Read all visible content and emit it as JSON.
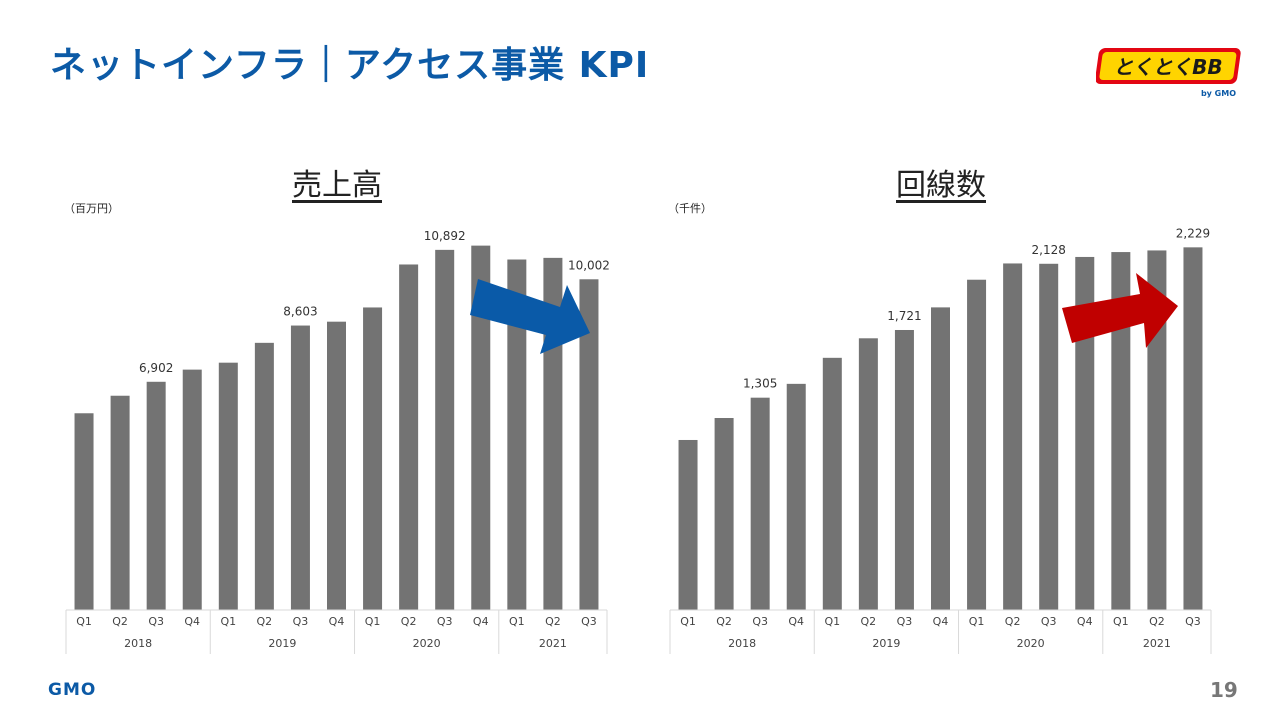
{
  "slide": {
    "title": "ネットインフラ｜アクセス事業 KPI",
    "page_number": "19",
    "footer_logo": "GMO",
    "brand_logo_text": "とくとくBB",
    "brand_logo_sub": "by GMO"
  },
  "colors": {
    "bar": "#737373",
    "title": "#0c5aa6",
    "arrow_down": "#0a5aa8",
    "arrow_up": "#c00000"
  },
  "chart_data": [
    {
      "type": "bar",
      "title": "売上高",
      "unit": "（百万円）",
      "categories": [
        "Q1",
        "Q2",
        "Q3",
        "Q4",
        "Q1",
        "Q2",
        "Q3",
        "Q4",
        "Q1",
        "Q2",
        "Q3",
        "Q4",
        "Q1",
        "Q2",
        "Q3"
      ],
      "groups": [
        {
          "label": "2018",
          "count": 4
        },
        {
          "label": "2019",
          "count": 4
        },
        {
          "label": "2020",
          "count": 4
        },
        {
          "label": "2021",
          "count": 3
        }
      ],
      "values": [
        5950,
        6480,
        6902,
        7270,
        7480,
        8080,
        8603,
        8720,
        9150,
        10450,
        10892,
        11020,
        10600,
        10650,
        10002
      ],
      "data_labels": [
        {
          "index": 2,
          "text": "6,902"
        },
        {
          "index": 6,
          "text": "8,603"
        },
        {
          "index": 10,
          "text": "10,892"
        },
        {
          "index": 14,
          "text": "10,002"
        }
      ],
      "ylim": [
        0,
        12400
      ],
      "trend_arrow": "down"
    },
    {
      "type": "bar",
      "title": "回線数",
      "unit": "（千件）",
      "categories": [
        "Q1",
        "Q2",
        "Q3",
        "Q4",
        "Q1",
        "Q2",
        "Q3",
        "Q4",
        "Q1",
        "Q2",
        "Q3",
        "Q4",
        "Q1",
        "Q2",
        "Q3"
      ],
      "groups": [
        {
          "label": "2018",
          "count": 4
        },
        {
          "label": "2019",
          "count": 4
        },
        {
          "label": "2020",
          "count": 4
        },
        {
          "label": "2021",
          "count": 3
        }
      ],
      "values": [
        1045,
        1180,
        1305,
        1390,
        1550,
        1670,
        1721,
        1860,
        2030,
        2130,
        2128,
        2170,
        2200,
        2210,
        2229
      ],
      "data_labels": [
        {
          "index": 2,
          "text": "1,305"
        },
        {
          "index": 6,
          "text": "1,721"
        },
        {
          "index": 10,
          "text": "2,128"
        },
        {
          "index": 14,
          "text": "2,229"
        }
      ],
      "ylim": [
        0,
        2520
      ],
      "trend_arrow": "up"
    }
  ]
}
